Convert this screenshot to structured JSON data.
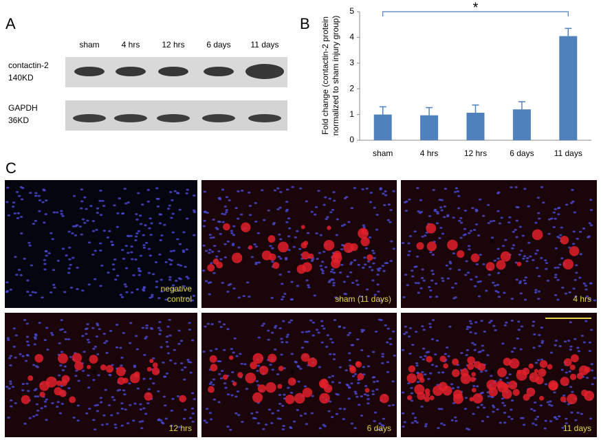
{
  "panels": {
    "a": "A",
    "b": "B",
    "c": "C"
  },
  "blot": {
    "lanes": [
      "sham",
      "4 hrs",
      "12 hrs",
      "6 days",
      "11 days"
    ],
    "rows": [
      {
        "name": "contactin-2",
        "size": "140KD"
      },
      {
        "name": "GAPDH",
        "size": "36KD"
      }
    ]
  },
  "chart_data": {
    "type": "bar",
    "ylabel": [
      "Fold change (contactin-2 protein",
      "normalized to sham injury group)"
    ],
    "categories": [
      "sham",
      "4 hrs",
      "12 hrs",
      "6 days",
      "11 days"
    ],
    "values": [
      1.0,
      0.97,
      1.07,
      1.2,
      4.05
    ],
    "errors": [
      0.3,
      0.3,
      0.3,
      0.3,
      0.3
    ],
    "color": "#4f81bd",
    "ylim": [
      0,
      5
    ],
    "yticks": [
      0,
      1,
      2,
      3,
      4,
      5
    ],
    "annotation": "*"
  },
  "micrographs": [
    {
      "label": [
        "negative",
        "control"
      ]
    },
    {
      "label": [
        "sham (11 days)"
      ]
    },
    {
      "label": [
        "4 hrs"
      ]
    },
    {
      "label": [
        "12 hrs"
      ]
    },
    {
      "label": [
        "6 days"
      ]
    },
    {
      "label": [
        "11 days"
      ]
    }
  ]
}
